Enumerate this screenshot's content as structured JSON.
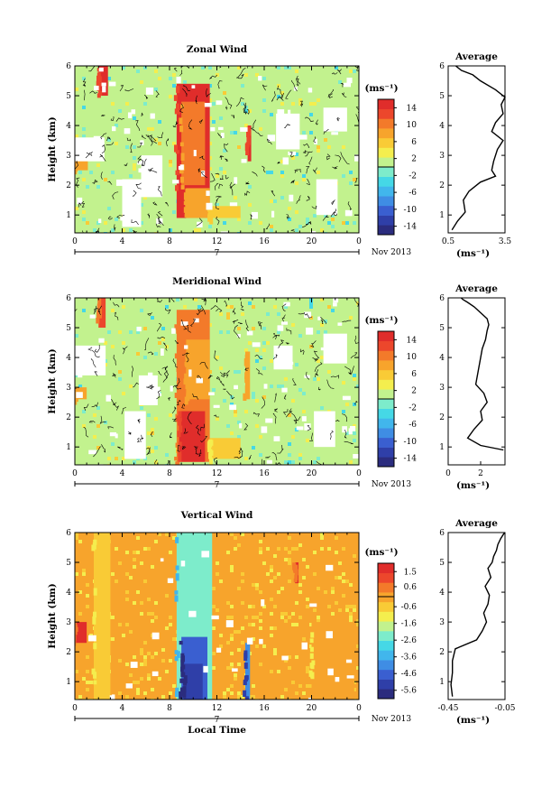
{
  "figure": {
    "date_label": "Nov 2013",
    "day_label": "7",
    "x_axis_label": "Local Time",
    "units_label": "(ms⁻¹)"
  },
  "colors": {
    "scale": [
      "#2b2c7e",
      "#2f3fa8",
      "#3a5fd0",
      "#3f8de4",
      "#41b6ec",
      "#45d8e6",
      "#7deccb",
      "#c2f28e",
      "#f4ee4e",
      "#f9cb36",
      "#f7a42c",
      "#f37a2a",
      "#ec472c",
      "#e02d2b"
    ],
    "no_data": "#ffffff"
  },
  "chart_data": [
    {
      "type": "heatmap",
      "title": "Zonal Wind",
      "ylabel": "Height (km)",
      "xlim": [
        0,
        24
      ],
      "ylim": [
        0.4,
        6
      ],
      "xticks": [
        "0",
        "4",
        "8",
        "12",
        "16",
        "20",
        "0"
      ],
      "yticks": [
        "1",
        "2",
        "3",
        "4",
        "5",
        "6"
      ],
      "colorbar": {
        "ticks": [
          "14",
          "10",
          "6",
          "2",
          "-2",
          "-6",
          "-10",
          "-14"
        ],
        "range": [
          -16,
          16
        ]
      },
      "regions": [
        {
          "x": [
            8.6,
            11.4
          ],
          "y": [
            0.9,
            5.4
          ],
          "value": 14
        },
        {
          "x": [
            9.0,
            11.0
          ],
          "y": [
            2.0,
            4.8
          ],
          "value": 10
        },
        {
          "x": [
            9.4,
            11.4
          ],
          "y": [
            0.9,
            1.9
          ],
          "value": 8
        },
        {
          "x": [
            2.0,
            2.8
          ],
          "y": [
            5.0,
            6.0
          ],
          "value": 14
        },
        {
          "x": [
            0.0,
            1.1
          ],
          "y": [
            2.5,
            3.0
          ],
          "value": 9
        },
        {
          "x": [
            14.6,
            14.9
          ],
          "y": [
            2.8,
            4.0
          ],
          "value": 14
        },
        {
          "x": [
            11.4,
            14.0
          ],
          "y": [
            0.9,
            1.3
          ],
          "value": 6
        }
      ],
      "gaps": [
        {
          "x": [
            0.0,
            2.5
          ],
          "y": [
            2.8,
            3.6
          ]
        },
        {
          "x": [
            4.0,
            5.6
          ],
          "y": [
            0.6,
            2.2
          ]
        },
        {
          "x": [
            5.6,
            7.4
          ],
          "y": [
            1.6,
            3.0
          ]
        },
        {
          "x": [
            20.4,
            22.2
          ],
          "y": [
            1.0,
            2.2
          ]
        },
        {
          "x": [
            17.0,
            19.0
          ],
          "y": [
            3.2,
            4.4
          ]
        },
        {
          "x": [
            21.0,
            23.0
          ],
          "y": [
            3.8,
            4.6
          ]
        }
      ],
      "base_value": 1,
      "profile": {
        "title": "Average",
        "xlabel": "(ms⁻¹)",
        "xticks": [
          "0.5",
          "3.5"
        ],
        "xlim": [
          0.5,
          3.5
        ],
        "yticks": [
          "1",
          "2",
          "3",
          "4",
          "5",
          "6"
        ],
        "x": [
          0.7,
          1.0,
          1.4,
          1.3,
          1.6,
          2.2,
          3.0,
          2.8,
          2.9,
          3.1,
          3.4,
          2.8,
          3.0,
          3.4,
          3.3,
          3.5,
          3.0,
          2.2,
          1.8,
          1.2,
          1.0,
          0.9
        ],
        "y": [
          0.5,
          0.8,
          1.1,
          1.5,
          1.8,
          2.1,
          2.3,
          2.5,
          2.8,
          3.2,
          3.5,
          3.8,
          4.1,
          4.4,
          4.7,
          4.95,
          5.2,
          5.5,
          5.7,
          5.85,
          5.95,
          6.0
        ]
      }
    },
    {
      "type": "heatmap",
      "title": "Meridional Wind",
      "ylabel": "Height (km)",
      "xlim": [
        0,
        24
      ],
      "ylim": [
        0.4,
        6
      ],
      "xticks": [
        "0",
        "4",
        "8",
        "12",
        "16",
        "20",
        "0"
      ],
      "yticks": [
        "1",
        "2",
        "3",
        "4",
        "5",
        "6"
      ],
      "colorbar": {
        "ticks": [
          "14",
          "10",
          "6",
          "2",
          "-2",
          "-6",
          "-10",
          "-14"
        ],
        "range": [
          -16,
          16
        ]
      },
      "regions": [
        {
          "x": [
            8.6,
            11.4
          ],
          "y": [
            0.5,
            5.6
          ],
          "value": 11
        },
        {
          "x": [
            8.8,
            11.0
          ],
          "y": [
            0.5,
            2.2
          ],
          "value": 14
        },
        {
          "x": [
            9.4,
            11.4
          ],
          "y": [
            2.6,
            4.6
          ],
          "value": 8
        },
        {
          "x": [
            2.0,
            2.6
          ],
          "y": [
            5.0,
            6.0
          ],
          "value": 12
        },
        {
          "x": [
            0.0,
            1.0
          ],
          "y": [
            2.6,
            3.0
          ],
          "value": 9
        },
        {
          "x": [
            14.4,
            14.8
          ],
          "y": [
            2.6,
            4.2
          ],
          "value": 9
        },
        {
          "x": [
            11.4,
            14.0
          ],
          "y": [
            0.6,
            1.3
          ],
          "value": 5
        }
      ],
      "gaps": [
        {
          "x": [
            0.0,
            2.6
          ],
          "y": [
            3.4,
            4.4
          ]
        },
        {
          "x": [
            4.2,
            6.0
          ],
          "y": [
            0.6,
            2.2
          ]
        },
        {
          "x": [
            5.4,
            7.0
          ],
          "y": [
            2.4,
            3.4
          ]
        },
        {
          "x": [
            20.2,
            22.0
          ],
          "y": [
            1.0,
            2.2
          ]
        },
        {
          "x": [
            21.0,
            23.0
          ],
          "y": [
            3.8,
            4.8
          ]
        },
        {
          "x": [
            16.8,
            18.4
          ],
          "y": [
            3.6,
            4.4
          ]
        }
      ],
      "base_value": 1,
      "profile": {
        "title": "Average",
        "xlabel": "(ms⁻¹)",
        "xticks": [
          "0",
          "2"
        ],
        "xlim": [
          0,
          3.5
        ],
        "yticks": [
          "1",
          "2",
          "3",
          "4",
          "5",
          "6"
        ],
        "x": [
          3.4,
          2.0,
          1.2,
          1.6,
          2.1,
          2.0,
          2.4,
          2.2,
          1.7,
          1.8,
          1.9,
          2.0,
          2.1,
          2.3,
          2.4,
          2.5,
          2.4,
          2.0,
          1.6,
          1.2,
          0.9,
          0.8
        ],
        "y": [
          0.9,
          1.05,
          1.3,
          1.6,
          1.9,
          2.2,
          2.5,
          2.8,
          3.1,
          3.4,
          3.7,
          4.0,
          4.3,
          4.6,
          4.9,
          5.1,
          5.3,
          5.5,
          5.7,
          5.85,
          5.95,
          6.0
        ]
      }
    },
    {
      "type": "heatmap",
      "title": "Vertical Wind",
      "ylabel": "Height (km)",
      "xlabel": "Local Time",
      "xlim": [
        0,
        24
      ],
      "ylim": [
        0.4,
        6
      ],
      "xticks": [
        "0",
        "4",
        "8",
        "12",
        "16",
        "20",
        "0"
      ],
      "yticks": [
        "1",
        "2",
        "3",
        "4",
        "5",
        "6"
      ],
      "colorbar": {
        "ticks": [
          "1.5",
          "0.6",
          "-0.6",
          "-1.6",
          "-2.6",
          "-3.6",
          "-4.6",
          "-5.6"
        ],
        "range": [
          -6.1,
          2.0
        ]
      },
      "regions": [
        {
          "x": [
            8.6,
            11.6
          ],
          "y": [
            0.4,
            6.0
          ],
          "value": -2.6
        },
        {
          "x": [
            9.0,
            11.2
          ],
          "y": [
            0.4,
            2.5
          ],
          "value": -4.6
        },
        {
          "x": [
            9.2,
            10.8
          ],
          "y": [
            0.4,
            1.6
          ],
          "value": -5.4
        },
        {
          "x": [
            14.4,
            14.8
          ],
          "y": [
            0.4,
            2.3
          ],
          "value": -4.0
        },
        {
          "x": [
            0.0,
            1.0
          ],
          "y": [
            2.3,
            3.0
          ],
          "value": 1.6
        },
        {
          "x": [
            18.6,
            18.9
          ],
          "y": [
            4.3,
            5.0
          ],
          "value": 1.5
        },
        {
          "x": [
            1.6,
            3.0
          ],
          "y": [
            0.4,
            6.0
          ],
          "value": -0.4
        },
        {
          "x": [
            20.0,
            23.6
          ],
          "y": [
            0.4,
            3.0
          ],
          "value": -0.3
        }
      ],
      "gaps": [],
      "base_value": 0.1,
      "profile": {
        "title": "Average",
        "xlabel": "(ms⁻¹)",
        "xticks": [
          "-0.45",
          "-0.05"
        ],
        "xlim": [
          -0.45,
          -0.05
        ],
        "yticks": [
          "1",
          "2",
          "3",
          "4",
          "5",
          "6"
        ],
        "x": [
          -0.42,
          -0.43,
          -0.42,
          -0.42,
          -0.4,
          -0.25,
          -0.21,
          -0.18,
          -0.2,
          -0.17,
          -0.16,
          -0.19,
          -0.15,
          -0.17,
          -0.14,
          -0.13,
          -0.11,
          -0.1,
          -0.08,
          -0.06,
          -0.05
        ],
        "y": [
          0.5,
          0.9,
          1.3,
          1.7,
          2.1,
          2.4,
          2.7,
          3.0,
          3.3,
          3.6,
          3.9,
          4.2,
          4.5,
          4.8,
          5.0,
          5.2,
          5.4,
          5.6,
          5.8,
          5.95,
          6.0
        ]
      }
    }
  ]
}
